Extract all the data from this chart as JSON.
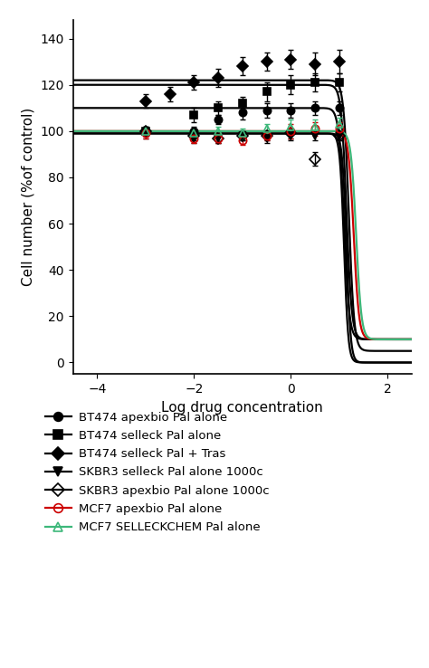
{
  "title": "",
  "xlabel": "Log drug concentration",
  "ylabel": "Cell number (%of control)",
  "xlim": [
    -4.5,
    2.5
  ],
  "ylim": [
    -5,
    148
  ],
  "xticks": [
    -4,
    -2,
    0,
    2
  ],
  "yticks": [
    0,
    20,
    40,
    60,
    80,
    100,
    120,
    140
  ],
  "series": [
    {
      "label": "BT474 apexbio Pal alone",
      "color": "black",
      "marker": "o",
      "fillstyle": "full",
      "top": 110,
      "bottom": 10,
      "ec50": 1.1,
      "hill": 8,
      "scatter_x": [
        -3.0,
        -2.0,
        -1.5,
        -1.0,
        -0.5,
        0.0,
        0.5,
        1.0
      ],
      "scatter_y": [
        100,
        100,
        105,
        108,
        109,
        109,
        110,
        110
      ],
      "scatter_yerr": [
        2,
        2,
        2,
        3,
        3,
        3,
        3,
        3
      ]
    },
    {
      "label": "BT474 selleck Pal alone",
      "color": "black",
      "marker": "s",
      "fillstyle": "full",
      "top": 120,
      "bottom": 10,
      "ec50": 1.15,
      "hill": 8,
      "scatter_x": [
        -3.0,
        -2.0,
        -1.5,
        -1.0,
        -0.5,
        0.0,
        0.5,
        1.0
      ],
      "scatter_y": [
        100,
        107,
        110,
        112,
        117,
        120,
        121,
        121
      ],
      "scatter_yerr": [
        2,
        3,
        3,
        3,
        4,
        4,
        4,
        4
      ]
    },
    {
      "label": "BT474 selleck Pal + Tras",
      "color": "black",
      "marker": "D",
      "fillstyle": "full",
      "top": 122,
      "bottom": 5,
      "ec50": 1.2,
      "hill": 8,
      "scatter_x": [
        -3.0,
        -2.5,
        -2.0,
        -1.5,
        -1.0,
        -0.5,
        0.0,
        0.5,
        1.0
      ],
      "scatter_y": [
        113,
        116,
        121,
        123,
        128,
        130,
        131,
        129,
        130
      ],
      "scatter_yerr": [
        3,
        3,
        3,
        4,
        4,
        4,
        4,
        5,
        5
      ]
    },
    {
      "label": "SKBR3 selleck Pal alone 1000c",
      "color": "black",
      "marker": "v",
      "fillstyle": "full",
      "top": 99,
      "bottom": 0,
      "ec50": 1.1,
      "hill": 10,
      "scatter_x": [
        -3.0,
        -2.0,
        -1.5,
        -1.0,
        -0.5,
        0.0,
        0.5,
        1.0
      ],
      "scatter_y": [
        99,
        97,
        97,
        98,
        97,
        98,
        98,
        98
      ],
      "scatter_yerr": [
        2,
        2,
        2,
        2,
        2,
        2,
        2,
        2
      ]
    },
    {
      "label": "SKBR3 apexbio Pal alone 1000c",
      "color": "black",
      "marker": "D",
      "fillstyle": "none",
      "top": 99,
      "bottom": 0,
      "ec50": 1.15,
      "hill": 10,
      "scatter_x": [
        -3.0,
        -2.0,
        -1.5,
        -1.0,
        -0.5,
        0.0,
        0.5,
        1.0
      ],
      "scatter_y": [
        100,
        98,
        97,
        98,
        98,
        99,
        88,
        98
      ],
      "scatter_yerr": [
        2,
        2,
        2,
        2,
        2,
        2,
        3,
        2
      ]
    },
    {
      "label": "MCF7 apexbio Pal alone",
      "color": "#cc0000",
      "marker": "o",
      "fillstyle": "none",
      "top": 100,
      "bottom": 10,
      "ec50": 1.3,
      "hill": 8,
      "scatter_x": [
        -3.0,
        -2.0,
        -1.5,
        -1.0,
        -0.5,
        0.0,
        0.5,
        1.0
      ],
      "scatter_y": [
        99,
        97,
        97,
        96,
        98,
        100,
        101,
        101
      ],
      "scatter_yerr": [
        2,
        2,
        2,
        2,
        2,
        3,
        3,
        3
      ]
    },
    {
      "label": "MCF7 SELLECKCHEM Pal alone",
      "color": "#3db87a",
      "marker": "^",
      "fillstyle": "none",
      "top": 100,
      "bottom": 10,
      "ec50": 1.35,
      "hill": 8,
      "scatter_x": [
        -3.0,
        -2.0,
        -1.5,
        -1.0,
        -0.5,
        0.0,
        0.5,
        1.0
      ],
      "scatter_y": [
        100,
        99,
        100,
        99,
        101,
        102,
        102,
        103
      ],
      "scatter_yerr": [
        2,
        2,
        2,
        2,
        2,
        3,
        3,
        3
      ]
    }
  ],
  "legend_styles": [
    {
      "label": "BT474 apexbio Pal alone",
      "color": "black",
      "marker": "o",
      "fillstyle": "full"
    },
    {
      "label": "BT474 selleck Pal alone",
      "color": "black",
      "marker": "s",
      "fillstyle": "full"
    },
    {
      "label": "BT474 selleck Pal + Tras",
      "color": "black",
      "marker": "D",
      "fillstyle": "full"
    },
    {
      "label": "SKBR3 selleck Pal alone 1000c",
      "color": "black",
      "marker": "v",
      "fillstyle": "full"
    },
    {
      "label": "SKBR3 apexbio Pal alone 1000c",
      "color": "black",
      "marker": "D",
      "fillstyle": "none"
    },
    {
      "label": "MCF7 apexbio Pal alone",
      "color": "#cc0000",
      "marker": "o",
      "fillstyle": "none"
    },
    {
      "label": "MCF7 SELLECKCHEM Pal alone",
      "color": "#3db87a",
      "marker": "^",
      "fillstyle": "none"
    }
  ],
  "background_color": "#ffffff",
  "figsize": [
    4.74,
    7.38
  ],
  "dpi": 100
}
